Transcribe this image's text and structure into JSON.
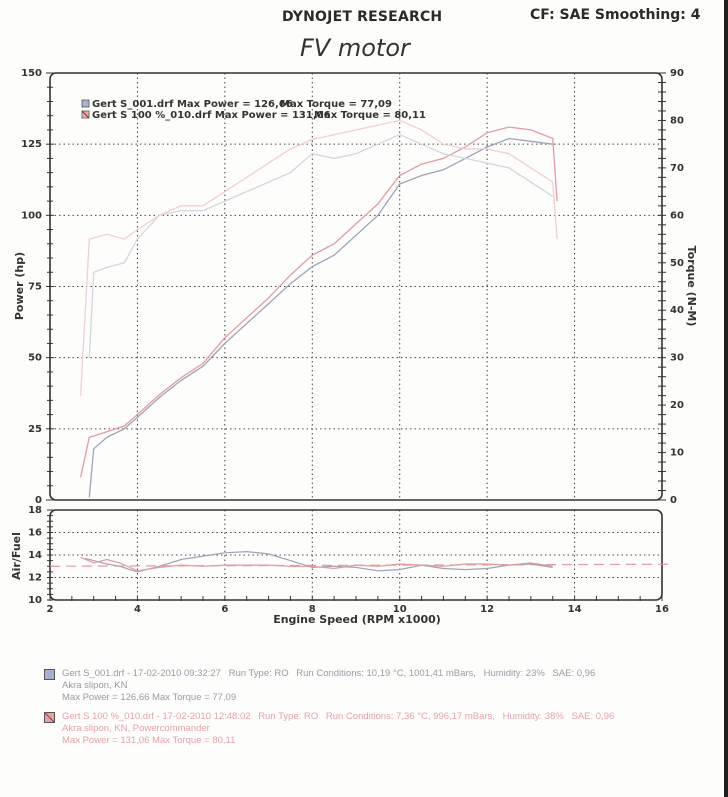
{
  "header": {
    "brand": "DYNOJET RESEARCH",
    "correction": "CF: SAE  Smoothing: 4",
    "title": "FV motor"
  },
  "colors": {
    "run1": "#9ea3b8",
    "run1_light": "#d4d6df",
    "run2": "#e39aa0",
    "run2_light": "#f0cfd2",
    "grid": "#444444",
    "frame": "#333333"
  },
  "legend": {
    "items": [
      {
        "label": "Gert S_001.drf Max Power = 126,66",
        "torque": "Max Torque = 77,09"
      },
      {
        "label": "Gert S 100 %_010.drf Max Power = 131,06",
        "torque": "Max Torque = 80,11"
      }
    ]
  },
  "runs": [
    {
      "line1": "Gert S_001.drf - 17-02-2010 09:32:27",
      "run_type": "Run Type: RO",
      "conditions": "Run Conditions: 10,19 °C, 1001,41 mBars,",
      "humidity": "Humidity: 23%",
      "sae": "SAE: 0,96",
      "note": "Akra slipon, KN",
      "max": "Max Power = 126,66  Max Torque = 77,09"
    },
    {
      "line1": "Gert S 100 %_010.drf - 17-02-2010 12:48:02",
      "run_type": "Run Type: RO",
      "conditions": "Run Conditions: 7,36 °C, 996,17 mBars,",
      "humidity": "Humidity: 38%",
      "sae": "SAE: 0,96",
      "note": "Akra slipon, KN, Powercommander",
      "max": "Max Power = 131,06  Max Torque = 80,11"
    }
  ],
  "chart_data": [
    {
      "type": "line",
      "title": "FV motor",
      "xlabel": "Engine Speed (RPM x1000)",
      "ylabel": "Power (hp)",
      "y2label": "Torque (N-M)",
      "xlim": [
        2,
        16
      ],
      "ylim": [
        0,
        150
      ],
      "y2lim": [
        0,
        90
      ],
      "xticks": [
        2,
        4,
        6,
        8,
        10,
        12,
        14,
        16
      ],
      "yticks": [
        0,
        25,
        50,
        75,
        100,
        125,
        150
      ],
      "y2ticks": [
        0,
        10,
        20,
        30,
        40,
        50,
        60,
        70,
        80,
        90
      ],
      "grid": true,
      "legend_position": "top-left",
      "series": [
        {
          "name": "Gert S_001.drf Power",
          "axis": "hp",
          "x": [
            2.9,
            3.0,
            3.3,
            3.7,
            4.0,
            4.5,
            5.0,
            5.5,
            6.0,
            6.5,
            7.0,
            7.5,
            8.0,
            8.5,
            9.0,
            9.5,
            10.0,
            10.5,
            11.0,
            11.5,
            12.0,
            12.5,
            13.0,
            13.5
          ],
          "y": [
            1,
            18,
            22,
            25,
            29,
            36,
            42,
            47,
            55,
            62,
            69,
            76,
            82,
            86,
            93,
            100,
            111,
            114,
            116,
            120,
            124,
            127,
            126,
            125
          ]
        },
        {
          "name": "Gert S 100 %_010.drf Power",
          "axis": "hp",
          "x": [
            2.7,
            2.9,
            3.3,
            3.7,
            4.0,
            4.5,
            5.0,
            5.5,
            6.0,
            6.5,
            7.0,
            7.5,
            8.0,
            8.5,
            9.0,
            9.5,
            10.0,
            10.5,
            11.0,
            11.5,
            12.0,
            12.5,
            13.0,
            13.5,
            13.6
          ],
          "y": [
            8,
            22,
            24,
            26,
            30,
            37,
            43,
            48,
            57,
            64,
            71,
            79,
            86,
            90,
            97,
            104,
            114,
            118,
            120,
            124,
            129,
            131,
            130,
            127,
            105
          ]
        },
        {
          "name": "Gert S_001.drf Torque",
          "axis": "Nm",
          "x": [
            2.9,
            3.0,
            3.3,
            3.7,
            4.0,
            4.5,
            5.0,
            5.5,
            6.0,
            6.5,
            7.0,
            7.5,
            8.0,
            8.5,
            9.0,
            9.5,
            10.0,
            10.5,
            11.0,
            11.5,
            12.0,
            12.5,
            13.0,
            13.5
          ],
          "y": [
            30,
            48,
            49,
            50,
            55,
            60,
            61,
            61,
            63,
            65,
            67,
            69,
            73,
            72,
            73,
            75,
            77,
            75,
            73,
            72,
            71,
            70,
            67,
            64
          ]
        },
        {
          "name": "Gert S 100 %_010.drf Torque",
          "axis": "Nm",
          "x": [
            2.7,
            2.9,
            3.3,
            3.7,
            4.0,
            4.5,
            5.0,
            5.5,
            6.0,
            6.5,
            7.0,
            7.5,
            8.0,
            8.5,
            9.0,
            9.5,
            10.0,
            10.5,
            11.0,
            11.5,
            12.0,
            12.5,
            13.0,
            13.5,
            13.6
          ],
          "y": [
            22,
            55,
            56,
            55,
            57,
            60,
            62,
            62,
            65,
            68,
            71,
            74,
            76,
            77,
            78,
            79,
            80,
            78,
            75,
            74,
            74,
            73,
            70,
            67,
            55
          ]
        }
      ]
    },
    {
      "type": "line",
      "xlabel": "Engine Speed (RPM x1000)",
      "ylabel": "Air/Fuel",
      "xlim": [
        2,
        16
      ],
      "ylim": [
        10,
        18
      ],
      "xticks": [
        2,
        4,
        6,
        8,
        10,
        12,
        14,
        16
      ],
      "yticks": [
        10,
        12,
        14,
        16,
        18
      ],
      "grid": true,
      "reference_line": 13.0,
      "series": [
        {
          "name": "Gert S_001.drf AFR",
          "x": [
            2.8,
            3.0,
            3.3,
            3.6,
            4.0,
            4.5,
            5.0,
            5.5,
            6.0,
            6.5,
            7.0,
            7.5,
            8.0,
            8.5,
            9.0,
            9.5,
            10.0,
            10.5,
            11.0,
            11.5,
            12.0,
            12.5,
            13.0,
            13.5
          ],
          "y": [
            13.7,
            13.5,
            13.2,
            13.0,
            12.5,
            13.0,
            13.6,
            13.9,
            14.2,
            14.3,
            14.1,
            13.5,
            12.9,
            13.0,
            12.9,
            12.6,
            12.7,
            13.1,
            12.8,
            12.7,
            12.8,
            13.1,
            13.2,
            12.9
          ]
        },
        {
          "name": "Gert S 100 %_010.drf AFR",
          "x": [
            2.7,
            3.0,
            3.3,
            3.6,
            4.0,
            4.5,
            5.0,
            5.5,
            6.0,
            6.5,
            7.0,
            7.5,
            8.0,
            8.5,
            9.0,
            9.5,
            10.0,
            10.5,
            11.0,
            11.5,
            12.0,
            12.5,
            13.0,
            13.5
          ],
          "y": [
            13.8,
            13.3,
            13.6,
            13.3,
            12.6,
            12.9,
            13.1,
            13.0,
            13.1,
            13.1,
            13.1,
            13.0,
            13.0,
            12.8,
            13.1,
            13.0,
            13.2,
            13.1,
            13.0,
            13.2,
            13.2,
            13.1,
            13.3,
            13.0
          ]
        }
      ]
    }
  ]
}
